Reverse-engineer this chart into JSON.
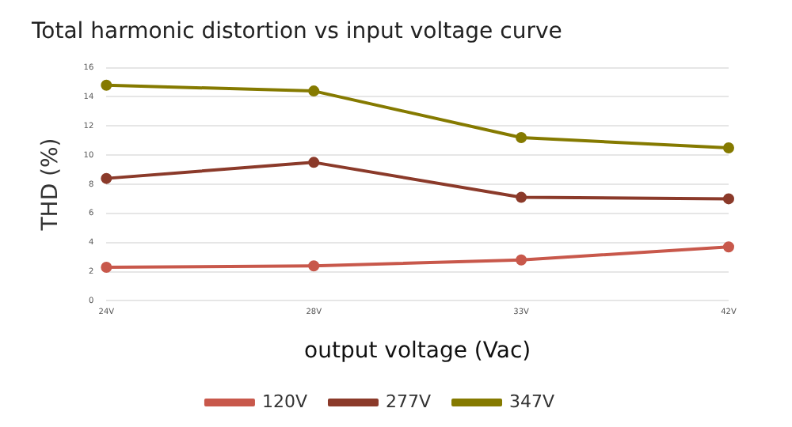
{
  "chart_data": {
    "type": "line",
    "title": "Total harmonic distortion vs input voltage curve",
    "xlabel": "output voltage (Vac)",
    "ylabel": "THD (%)",
    "categories": [
      "24V",
      "28V",
      "33V",
      "42V"
    ],
    "series": [
      {
        "name": "120V",
        "color": "#c8584b",
        "values": [
          2.3,
          2.4,
          2.8,
          3.7
        ]
      },
      {
        "name": "277V",
        "color": "#8b3a2a",
        "values": [
          8.4,
          9.5,
          7.1,
          7.0
        ]
      },
      {
        "name": "347V",
        "color": "#857a00",
        "values": [
          14.8,
          14.4,
          11.2,
          10.5
        ]
      }
    ],
    "ylim": [
      0,
      16
    ],
    "yticks": [
      0,
      2,
      4,
      6,
      8,
      10,
      12,
      14,
      16
    ],
    "grid": "y",
    "legend": "bottom",
    "marker": "circle",
    "line_style": "solid"
  }
}
